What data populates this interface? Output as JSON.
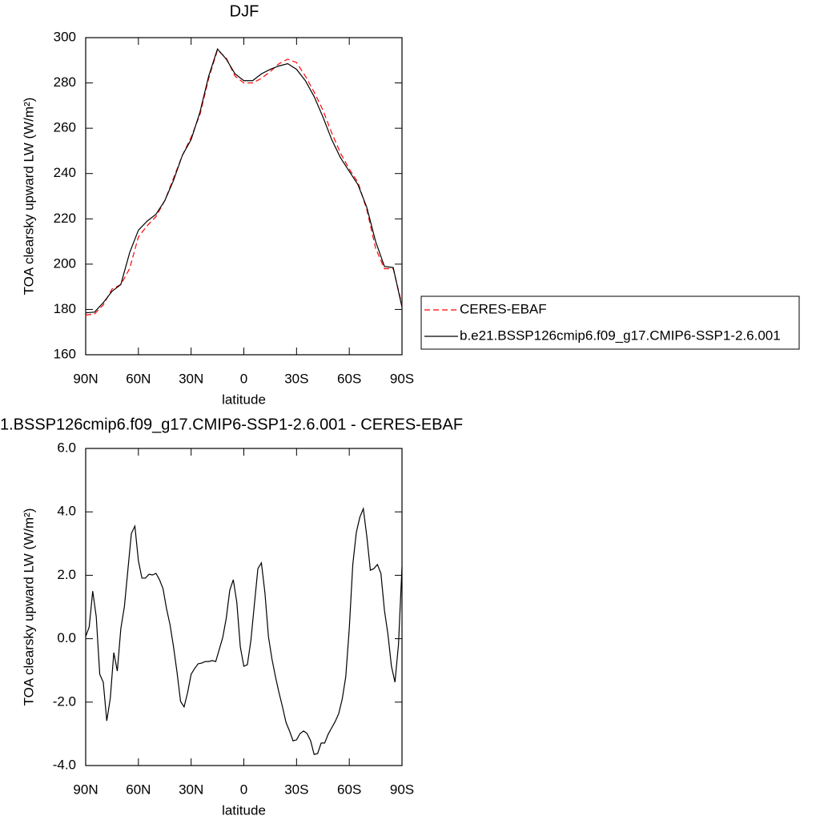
{
  "chart_data": [
    {
      "type": "line",
      "title": "DJF",
      "x_label": "latitude",
      "y_label": "TOA clearsky upward LW (W/m²)",
      "x": [
        90,
        85,
        80,
        75,
        70,
        65,
        60,
        55,
        50,
        45,
        40,
        35,
        30,
        25,
        20,
        15,
        10,
        5,
        0,
        -5,
        -10,
        -15,
        -20,
        -25,
        -30,
        -35,
        -40,
        -45,
        -50,
        -55,
        -60,
        -65,
        -70,
        -75,
        -80,
        -85,
        -90
      ],
      "series": [
        {
          "name": "CERES-EBAF",
          "color": "#ff0000",
          "line_style": "dashed",
          "values": [
            177.5,
            178,
            182,
            189,
            191,
            198,
            212,
            217,
            221,
            228,
            238,
            248,
            256,
            266,
            282,
            294.5,
            291,
            283,
            280,
            280,
            282,
            285,
            288.5,
            290.5,
            289,
            283,
            276,
            268,
            258,
            249,
            242,
            236,
            224,
            207,
            198,
            198,
            182
          ]
        },
        {
          "name": "b.e21.BSSP126cmip6.f09_g17.CMIP6-SSP1-2.6.001",
          "color": "#000000",
          "line_style": "solid",
          "values": [
            178.5,
            178.8,
            183,
            188,
            191,
            205,
            215,
            219,
            222,
            228,
            237,
            248,
            255,
            267,
            283,
            295,
            290.5,
            284,
            281,
            281,
            284,
            286,
            287.5,
            288.5,
            286,
            281,
            274,
            265,
            255,
            247,
            241,
            235,
            225,
            210,
            199,
            198.5,
            181
          ]
        }
      ],
      "xlim": [
        90,
        -90
      ],
      "xticks": [
        {
          "value": 90,
          "label": "90N"
        },
        {
          "value": 60,
          "label": "60N"
        },
        {
          "value": 30,
          "label": "30N"
        },
        0,
        {
          "value": -30,
          "label": "30S"
        },
        {
          "value": -60,
          "label": "60S"
        },
        {
          "value": -90,
          "label": "90S"
        }
      ],
      "ylim": [
        160,
        300
      ],
      "yticks": [
        160,
        180,
        200,
        220,
        240,
        260,
        280,
        300
      ],
      "legend": "right"
    },
    {
      "type": "line",
      "title": "1.BSSP126cmip6.f09_g17.CMIP6-SSP1-2.6.001 - CERES-EBAF",
      "x_label": "latitude",
      "y_label": "TOA clearsky upward LW (W/m²)",
      "x": [
        90,
        88,
        86,
        84,
        82,
        80,
        78,
        76,
        74,
        72,
        70,
        68,
        66,
        64,
        62,
        60,
        58,
        56,
        54,
        52,
        50,
        48,
        46,
        44,
        42,
        40,
        38,
        36,
        34,
        32,
        30,
        28,
        26,
        24,
        22,
        20,
        18,
        16,
        14,
        12,
        10,
        8,
        6,
        4,
        2,
        0,
        -2,
        -4,
        -6,
        -8,
        -10,
        -12,
        -14,
        -16,
        -18,
        -20,
        -22,
        -24,
        -26,
        -28,
        -30,
        -32,
        -34,
        -36,
        -38,
        -40,
        -42,
        -44,
        -46,
        -48,
        -50,
        -52,
        -54,
        -56,
        -58,
        -60,
        -62,
        -64,
        -66,
        -68,
        -70,
        -72,
        -74,
        -76,
        -78,
        -80,
        -82,
        -84,
        -86,
        -88,
        -90
      ],
      "color": "#000000",
      "values": [
        0.07,
        0.37,
        1.5,
        0.7,
        -1.12,
        -1.37,
        -2.59,
        -1.88,
        -0.44,
        -1.02,
        0.32,
        1.0,
        2.16,
        3.32,
        3.55,
        2.46,
        1.91,
        1.91,
        2.03,
        2.01,
        2.06,
        1.86,
        1.58,
        0.95,
        0.44,
        -0.26,
        -1.07,
        -1.98,
        -2.15,
        -1.7,
        -1.12,
        -0.94,
        -0.79,
        -0.77,
        -0.72,
        -0.72,
        -0.69,
        -0.72,
        -0.34,
        0.04,
        0.65,
        1.53,
        1.86,
        1.15,
        -0.26,
        -0.87,
        -0.82,
        -0.06,
        1.08,
        2.21,
        2.39,
        1.45,
        0.07,
        -0.64,
        -1.2,
        -1.7,
        -2.15,
        -2.64,
        -2.91,
        -3.22,
        -3.19,
        -2.99,
        -2.91,
        -2.99,
        -3.22,
        -3.65,
        -3.62,
        -3.29,
        -3.29,
        -3.01,
        -2.81,
        -2.61,
        -2.36,
        -1.9,
        -1.2,
        0.32,
        2.34,
        3.35,
        3.83,
        4.1,
        3.22,
        2.16,
        2.21,
        2.34,
        2.06,
        0.9,
        0.14,
        -0.87,
        -1.37,
        -0.19,
        2.26
      ],
      "xlim": [
        90,
        -90
      ],
      "xticks": [
        {
          "value": 90,
          "label": "90N"
        },
        {
          "value": 60,
          "label": "60N"
        },
        {
          "value": 30,
          "label": "30N"
        },
        0,
        {
          "value": -30,
          "label": "30S"
        },
        {
          "value": -60,
          "label": "60S"
        },
        {
          "value": -90,
          "label": "90S"
        }
      ],
      "ylim": [
        -4,
        6
      ],
      "yticks": [
        {
          "value": -4,
          "label": "-4.0"
        },
        {
          "value": -2,
          "label": "-2.0"
        },
        {
          "value": 0,
          "label": "0.0"
        },
        {
          "value": 2,
          "label": "2.0"
        },
        {
          "value": 4,
          "label": "4.0"
        },
        {
          "value": 6,
          "label": "6.0"
        }
      ]
    }
  ]
}
